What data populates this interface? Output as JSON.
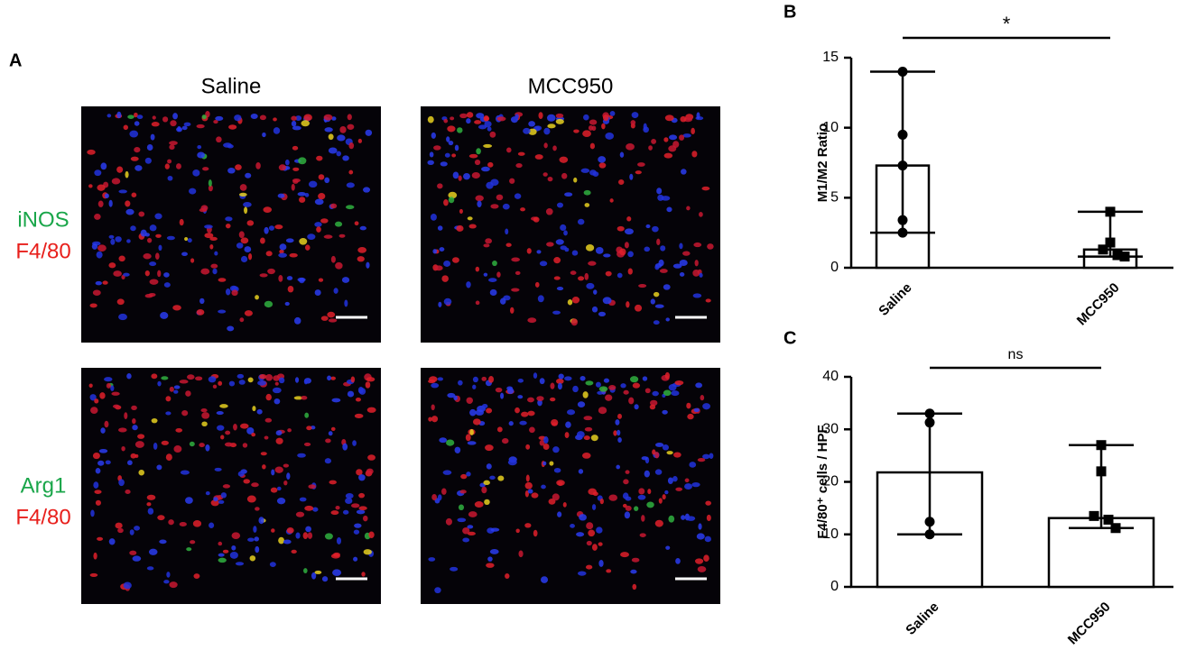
{
  "panel_a": {
    "label": "A",
    "columns": [
      "Saline",
      "MCC950"
    ],
    "rows": [
      {
        "stain": "iNOS",
        "counterstain": "F4/80"
      },
      {
        "stain": "Arg1",
        "counterstain": "F4/80"
      }
    ]
  },
  "chart_data": [
    {
      "type": "bar",
      "panel": "B",
      "ylabel": "M1/M2  Ratio",
      "categories": [
        "Saline",
        "MCC950"
      ],
      "values": [
        7.3,
        1.3
      ],
      "points": [
        [
          14,
          9.5,
          7.3,
          3.4,
          2.5
        ],
        [
          4.0,
          1.8,
          1.3,
          0.9,
          0.8
        ]
      ],
      "error_low": [
        2.5,
        0.8
      ],
      "error_high": [
        14,
        4.0
      ],
      "ylim": [
        0,
        15
      ],
      "yticks": [
        0,
        5,
        10,
        15
      ],
      "significance": "*"
    },
    {
      "type": "bar",
      "panel": "C",
      "ylabel": "F4/80⁺ cells / HPF",
      "categories": [
        "Saline",
        "MCC950"
      ],
      "values": [
        21.8,
        13.1
      ],
      "points": [
        [
          33,
          31.3,
          12.4,
          10
        ],
        [
          27,
          22,
          13.5,
          12.8,
          11.2
        ]
      ],
      "error_low": [
        10,
        11.2
      ],
      "error_high": [
        33,
        27
      ],
      "ylim": [
        0,
        40
      ],
      "yticks": [
        0,
        10,
        20,
        30,
        40
      ],
      "significance": "ns"
    }
  ]
}
